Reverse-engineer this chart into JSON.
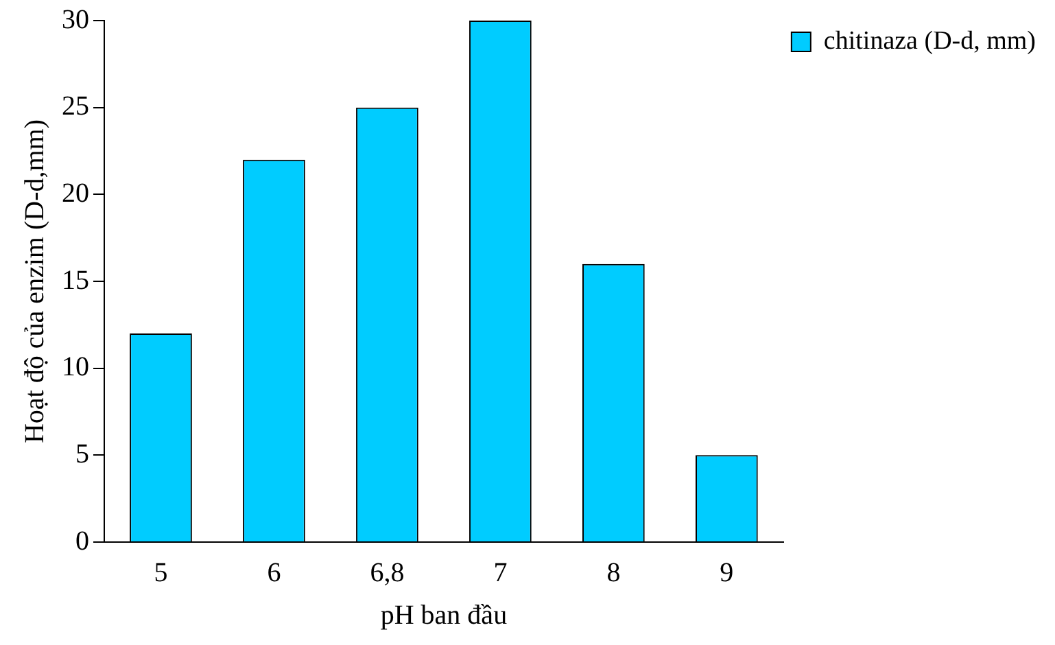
{
  "chart_data": {
    "type": "bar",
    "xlabel": "pH ban đầu",
    "ylabel": "Hoạt độ của enzim (D-d,mm)",
    "categories": [
      "5",
      "6",
      "6,8",
      "7",
      "8",
      "9"
    ],
    "series": [
      {
        "name": "chitinaza (D-d, mm)",
        "color": "#00ccff",
        "values": [
          12,
          22,
          25,
          30,
          16,
          5
        ]
      }
    ],
    "ylim": [
      0,
      30
    ],
    "yticks": [
      0,
      5,
      10,
      15,
      20,
      25,
      30
    ],
    "grid": false,
    "legend": "top right"
  }
}
